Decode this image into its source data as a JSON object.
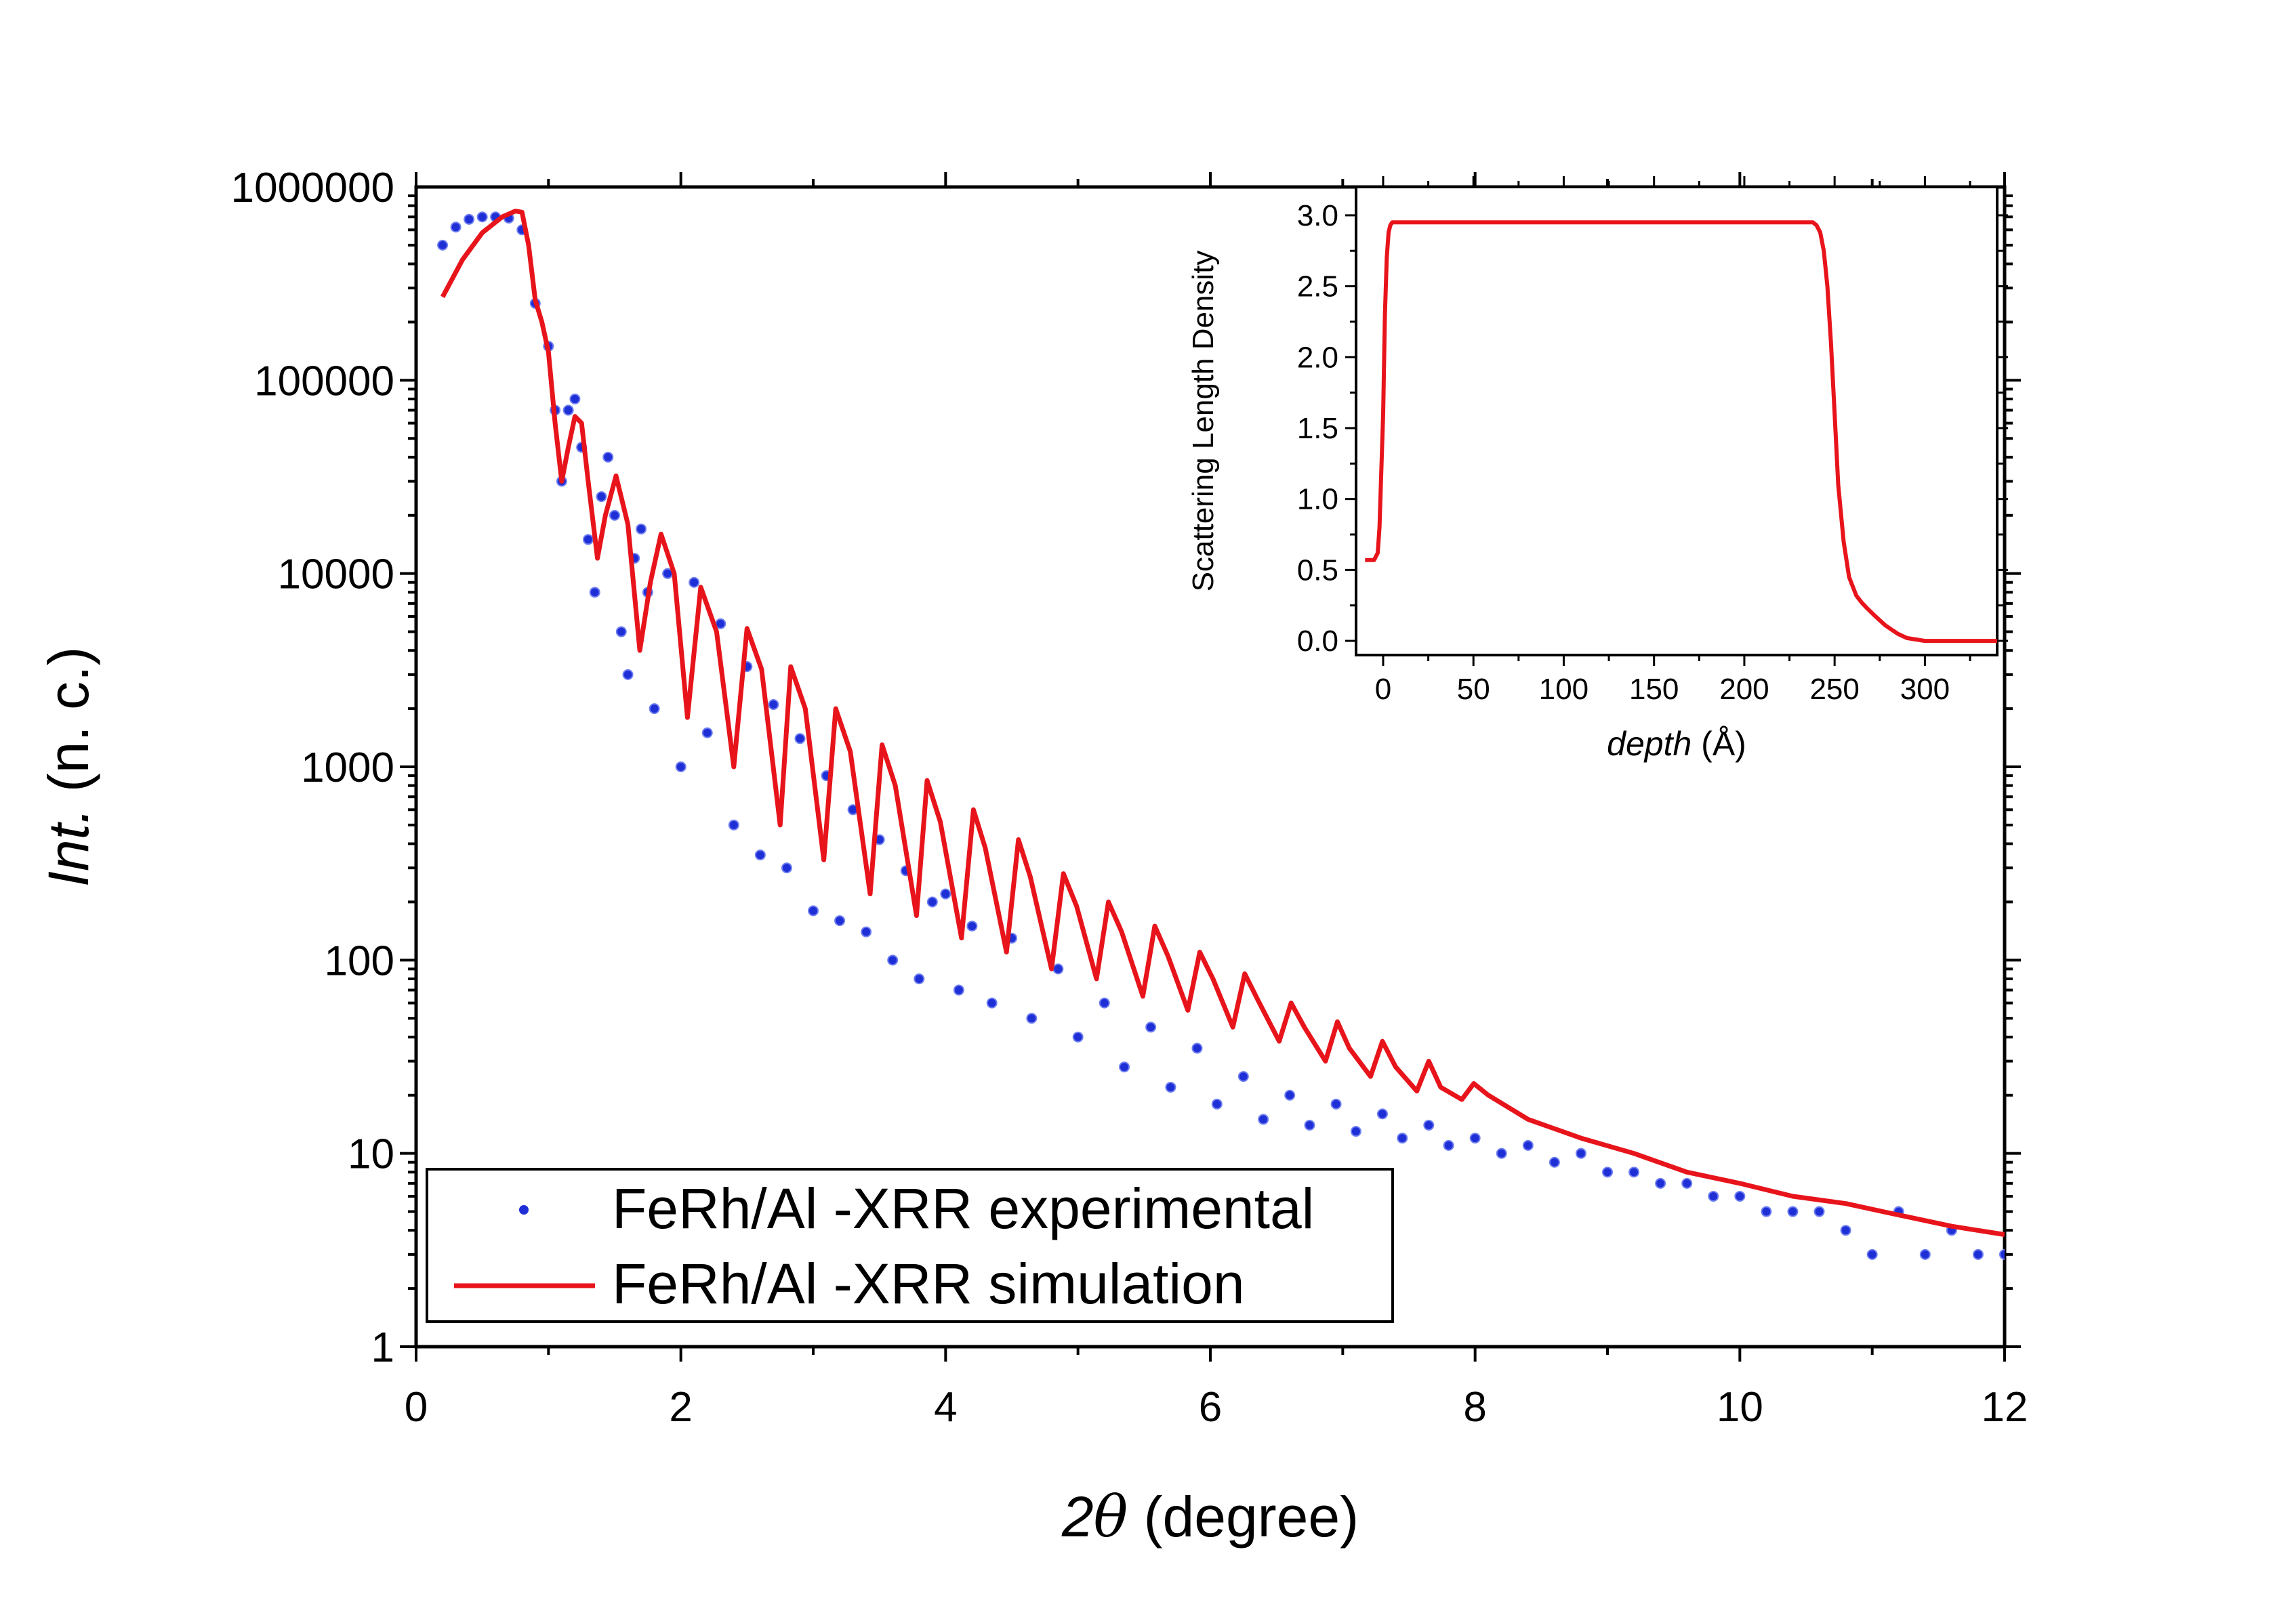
{
  "colors": {
    "experimental": "#1f2fd6",
    "simulation": "#e8141b",
    "axis": "#000000",
    "background": "#ffffff"
  },
  "icons": {
    "experimental": "marker-dot-icon",
    "simulation": "line-swatch-icon"
  },
  "chart_data": [
    {
      "type": "scatter",
      "title": "",
      "xlabel": {
        "prefix": "2",
        "symbol": "θ",
        "suffix": " (degree)"
      },
      "ylabel": {
        "italic": "Int.",
        "rest": " (n. c.)"
      },
      "xlim": [
        0,
        12
      ],
      "ylim": [
        1,
        1000000
      ],
      "yscale": "log",
      "x_ticks": [
        "0",
        "2",
        "4",
        "6",
        "8",
        "10",
        "12"
      ],
      "y_ticks": [
        "1",
        "10",
        "100",
        "1000",
        "10000",
        "100000",
        "1000000"
      ],
      "legend": {
        "position": "bottom-left",
        "entries": [
          "FeRh/Al -XRR experimental",
          "FeRh/Al -XRR simulation"
        ]
      },
      "series": [
        {
          "name": "FeRh/Al -XRR experimental",
          "kind": "markers",
          "x": [
            0.2,
            0.3,
            0.4,
            0.5,
            0.6,
            0.7,
            0.8,
            0.9,
            1.0,
            1.05,
            1.1,
            1.15,
            1.2,
            1.25,
            1.3,
            1.35,
            1.4,
            1.45,
            1.5,
            1.55,
            1.6,
            1.65,
            1.7,
            1.75,
            1.8,
            1.9,
            2.0,
            2.1,
            2.2,
            2.3,
            2.4,
            2.5,
            2.6,
            2.7,
            2.8,
            2.9,
            3.0,
            3.1,
            3.2,
            3.3,
            3.4,
            3.5,
            3.6,
            3.7,
            3.8,
            3.9,
            4.0,
            4.1,
            4.2,
            4.35,
            4.5,
            4.65,
            4.85,
            5.0,
            5.2,
            5.35,
            5.55,
            5.7,
            5.9,
            6.05,
            6.25,
            6.4,
            6.6,
            6.75,
            6.95,
            7.1,
            7.3,
            7.45,
            7.65,
            7.8,
            8.0,
            8.2,
            8.4,
            8.6,
            8.8,
            9.0,
            9.2,
            9.4,
            9.6,
            9.8,
            10.0,
            10.2,
            10.4,
            10.6,
            10.8,
            11.0,
            11.2,
            11.4,
            11.6,
            11.8,
            12.0
          ],
          "y": [
            500000,
            620000,
            680000,
            700000,
            700000,
            690000,
            600000,
            250000,
            150000,
            70000,
            30000,
            70000,
            80000,
            45000,
            15000,
            8000,
            25000,
            40000,
            20000,
            5000,
            3000,
            12000,
            17000,
            8000,
            2000,
            10000,
            1000,
            9000,
            1500,
            5500,
            500,
            3300,
            350,
            2100,
            300,
            1400,
            180,
            900,
            160,
            600,
            140,
            420,
            100,
            290,
            80,
            200,
            220,
            70,
            150,
            60,
            130,
            50,
            90,
            40,
            60,
            28,
            45,
            22,
            35,
            18,
            25,
            15,
            20,
            14,
            18,
            13,
            16,
            12,
            14,
            11,
            12,
            10,
            11,
            9,
            10,
            8,
            8,
            7,
            7,
            6,
            6,
            5,
            5,
            5,
            4,
            3,
            5,
            3,
            4,
            3,
            3
          ]
        },
        {
          "name": "FeRh/Al -XRR simulation",
          "kind": "line",
          "x": [
            0.2,
            0.35,
            0.5,
            0.65,
            0.75,
            0.8,
            0.85,
            0.9,
            0.95,
            1.0,
            1.05,
            1.1,
            1.15,
            1.2,
            1.25,
            1.3,
            1.37,
            1.43,
            1.51,
            1.6,
            1.69,
            1.77,
            1.85,
            1.95,
            2.05,
            2.15,
            2.27,
            2.4,
            2.5,
            2.61,
            2.75,
            2.83,
            2.94,
            3.08,
            3.17,
            3.28,
            3.43,
            3.52,
            3.62,
            3.78,
            3.86,
            3.96,
            4.12,
            4.21,
            4.3,
            4.46,
            4.55,
            4.64,
            4.8,
            4.89,
            4.99,
            5.14,
            5.23,
            5.33,
            5.49,
            5.58,
            5.68,
            5.83,
            5.92,
            6.02,
            6.17,
            6.26,
            6.36,
            6.52,
            6.61,
            6.71,
            6.87,
            6.96,
            7.05,
            7.21,
            7.3,
            7.4,
            7.56,
            7.65,
            7.74,
            7.9,
            7.99,
            8.1,
            8.4,
            8.8,
            9.2,
            9.6,
            10.0,
            10.4,
            10.8,
            11.2,
            11.6,
            12.0
          ],
          "y": [
            270000,
            420000,
            580000,
            700000,
            750000,
            740000,
            500000,
            260000,
            200000,
            140000,
            60000,
            30000,
            45000,
            65000,
            60000,
            30000,
            12000,
            20000,
            32000,
            18000,
            4000,
            9000,
            16000,
            10000,
            1800,
            8500,
            5000,
            1000,
            5200,
            3200,
            500,
            3300,
            2000,
            330,
            2000,
            1200,
            220,
            1300,
            800,
            170,
            850,
            520,
            130,
            600,
            380,
            110,
            420,
            270,
            90,
            280,
            190,
            80,
            200,
            140,
            65,
            150,
            105,
            55,
            110,
            80,
            45,
            85,
            62,
            38,
            60,
            45,
            30,
            48,
            35,
            25,
            38,
            28,
            21,
            30,
            22,
            19,
            23,
            20,
            15,
            12,
            10,
            8,
            7,
            6,
            5.5,
            4.8,
            4.2,
            3.8
          ]
        }
      ]
    },
    {
      "type": "line",
      "title": "",
      "xlabel": {
        "italic": "depth",
        "rest": " (Å)"
      },
      "ylabel": "Scattering Length Density",
      "xlim": [
        -15,
        340
      ],
      "ylim": [
        -0.1,
        3.2
      ],
      "x_ticks": [
        "0",
        "50",
        "100",
        "150",
        "200",
        "250",
        "300"
      ],
      "y_ticks": [
        "0.0",
        "0.5",
        "1.0",
        "1.5",
        "2.0",
        "2.5",
        "3.0"
      ],
      "series": [
        {
          "name": "",
          "x": [
            -10,
            -5,
            -3,
            -2,
            0,
            1,
            2,
            3,
            4,
            5,
            8,
            100,
            200,
            238,
            240,
            242,
            244,
            246,
            248,
            250,
            252,
            255,
            258,
            262,
            265,
            268,
            272,
            278,
            285,
            290,
            295,
            300,
            310,
            340
          ],
          "y": [
            0.57,
            0.57,
            0.62,
            0.8,
            1.6,
            2.3,
            2.7,
            2.88,
            2.93,
            2.95,
            2.95,
            2.95,
            2.95,
            2.95,
            2.93,
            2.88,
            2.75,
            2.5,
            2.1,
            1.6,
            1.1,
            0.7,
            0.45,
            0.32,
            0.27,
            0.23,
            0.18,
            0.11,
            0.05,
            0.02,
            0.01,
            0.0,
            0.0,
            0.0
          ]
        }
      ]
    }
  ]
}
